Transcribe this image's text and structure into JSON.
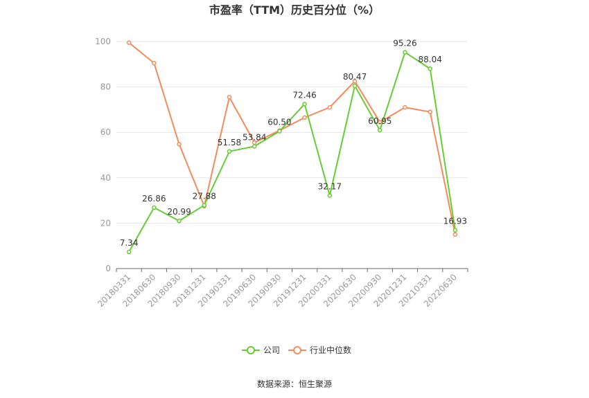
{
  "chart_data": {
    "type": "line",
    "title": "市盈率（TTM）历史百分位（%）",
    "source": "数据来源：恒生聚源",
    "xlabel": "",
    "ylabel": "",
    "ylim": [
      0,
      100
    ],
    "yticks": [
      0,
      20,
      40,
      60,
      80,
      100
    ],
    "grid": true,
    "legend_placement": "bottom",
    "categories": [
      "20180331",
      "20180630",
      "20180930",
      "20181231",
      "20190331",
      "20190630",
      "20190930",
      "20191231",
      "20200331",
      "20200630",
      "20200930",
      "20201231",
      "20210331",
      "20220630"
    ],
    "series": [
      {
        "name": "公司",
        "color": "#66cc33",
        "values": [
          7.34,
          26.86,
          20.99,
          27.88,
          51.58,
          53.84,
          60.5,
          72.46,
          32.17,
          80.47,
          60.95,
          95.26,
          88.04,
          16.93
        ],
        "labels": [
          "7.34",
          "26.86",
          "20.99",
          "27.88",
          "51.58",
          "53.84",
          "60.50",
          "72.46",
          "32.17",
          "80.47",
          "60.95",
          "95.26",
          "88.04",
          "16.93"
        ]
      },
      {
        "name": "行业中位数",
        "color": "#f28b5b",
        "values": [
          99.5,
          90.5,
          54.8,
          27.5,
          75.5,
          55.5,
          60.8,
          66.5,
          71.0,
          82.5,
          64.5,
          71.0,
          69.0,
          15.0
        ]
      }
    ]
  }
}
